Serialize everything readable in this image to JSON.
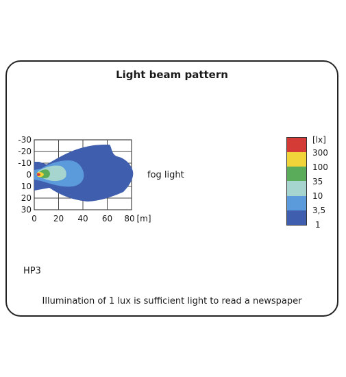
{
  "title": "Light beam pattern",
  "light_type_label": "fog light",
  "model": "HP3",
  "note": "Illumination of 1 lux is sufficient light to read a newspaper",
  "axes": {
    "x_ticks": [
      "0",
      "20",
      "40",
      "60",
      "80"
    ],
    "x_unit": "[m]",
    "y_ticks": [
      "-30",
      "-20",
      "-10",
      "0",
      "10",
      "20",
      "30"
    ]
  },
  "legend": {
    "unit": "[lx]",
    "items": [
      {
        "label": "",
        "color": "#d43a36"
      },
      {
        "label": "300",
        "color": "#f0d43a"
      },
      {
        "label": "100",
        "color": "#5aab5a"
      },
      {
        "label": "35",
        "color": "#a6d4cf"
      },
      {
        "label": "10",
        "color": "#5b9bdc"
      },
      {
        "label": "3,5",
        "color": "#3f5fae"
      },
      {
        "label": "1",
        "color": ""
      }
    ]
  }
}
